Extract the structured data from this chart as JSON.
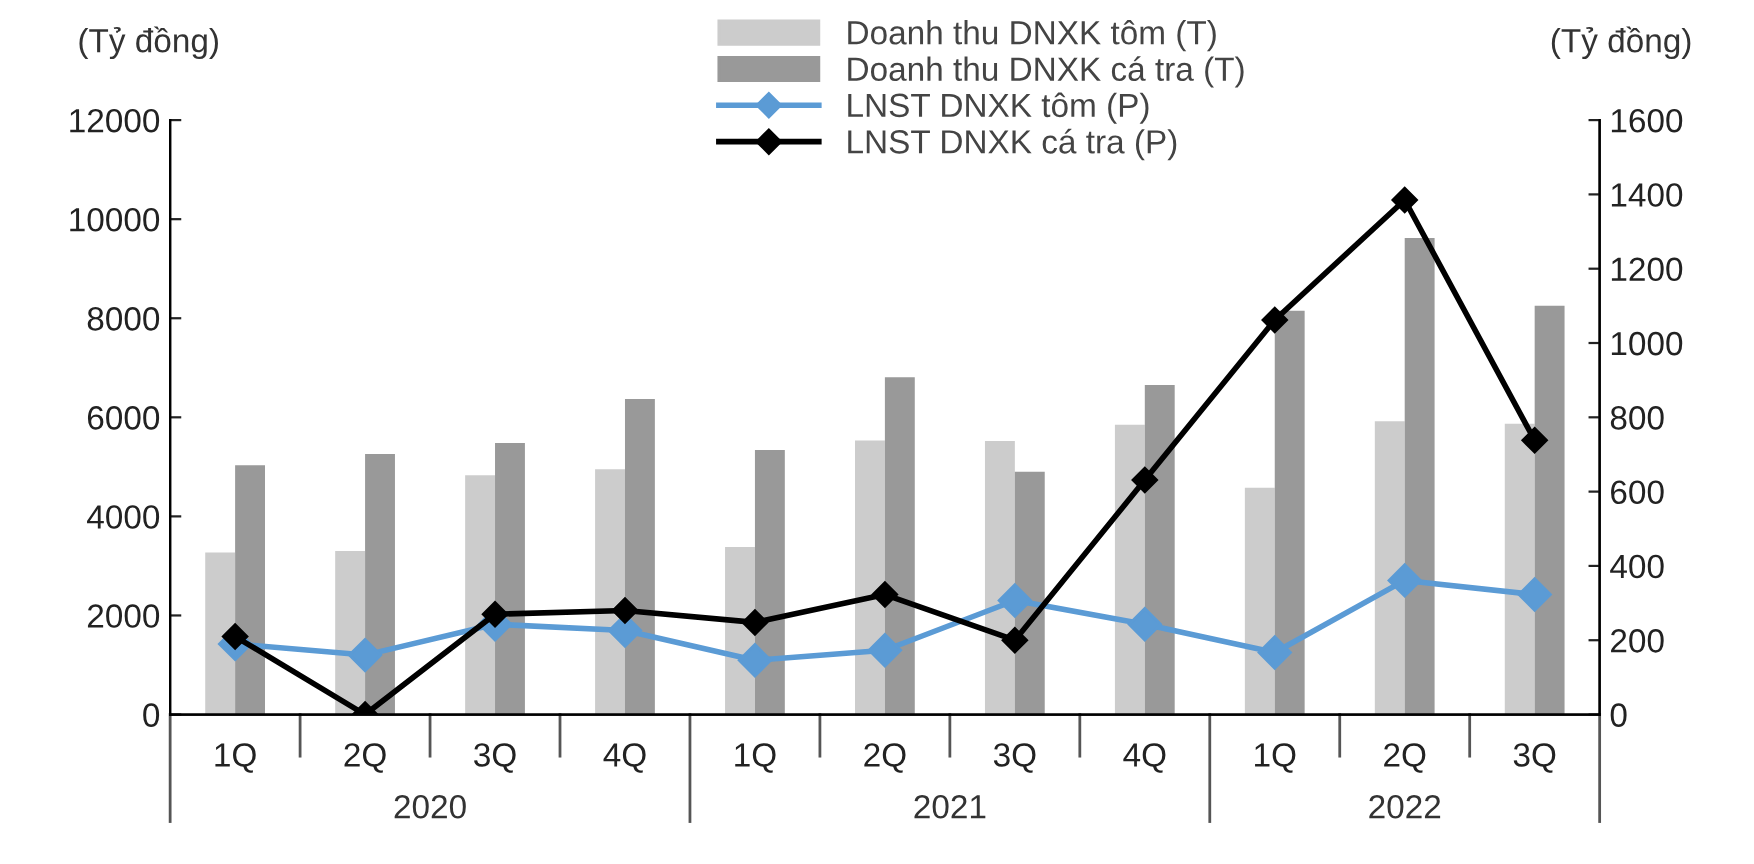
{
  "chart_data": {
    "type": "bar",
    "categories": [
      "1Q",
      "2Q",
      "3Q",
      "4Q",
      "1Q",
      "2Q",
      "3Q",
      "4Q",
      "1Q",
      "2Q",
      "3Q"
    ],
    "series": [
      {
        "name": "Doanh thu DNXK tôm (T)",
        "color": "#cccccc",
        "values": [
          3270,
          3300,
          4830,
          4950,
          3380,
          5530,
          5520,
          5850,
          4580,
          5920,
          5870
        ]
      },
      {
        "name": "Doanh thu DNXK cá tra (T)",
        "color": "#999999",
        "values": [
          5030,
          5260,
          5480,
          6370,
          5340,
          6810,
          4900,
          6650,
          8150,
          9620,
          8250
        ]
      },
      {
        "name": "LNST DNXK tôm (P)",
        "type": "line",
        "axis": "y2",
        "color": "#5b9bd5",
        "values": [
          190,
          160,
          243,
          226,
          146,
          173,
          307,
          243,
          167,
          361,
          323
        ]
      },
      {
        "name": "LNST DNXK cá tra (P)",
        "type": "line",
        "axis": "y2",
        "color": "#000000",
        "values": [
          210,
          0,
          270,
          280,
          248,
          323,
          200,
          631,
          1062,
          1385,
          738
        ]
      }
    ],
    "ylabel": "(Tỷ đồng)",
    "y2label": "(Tỷ đồng)",
    "annotations": [
      "2020",
      "2021",
      "2022"
    ],
    "ylim": [
      0,
      12000
    ],
    "yticks": [
      0,
      2000,
      4000,
      6000,
      8000,
      10000,
      12000
    ],
    "y2lim": [
      0,
      1600
    ],
    "y2ticks": [
      0,
      200,
      400,
      600,
      800,
      1000,
      1200,
      1400,
      1600
    ],
    "marker": "diamond",
    "line_style": "solid",
    "grid": false,
    "legend": "top"
  }
}
